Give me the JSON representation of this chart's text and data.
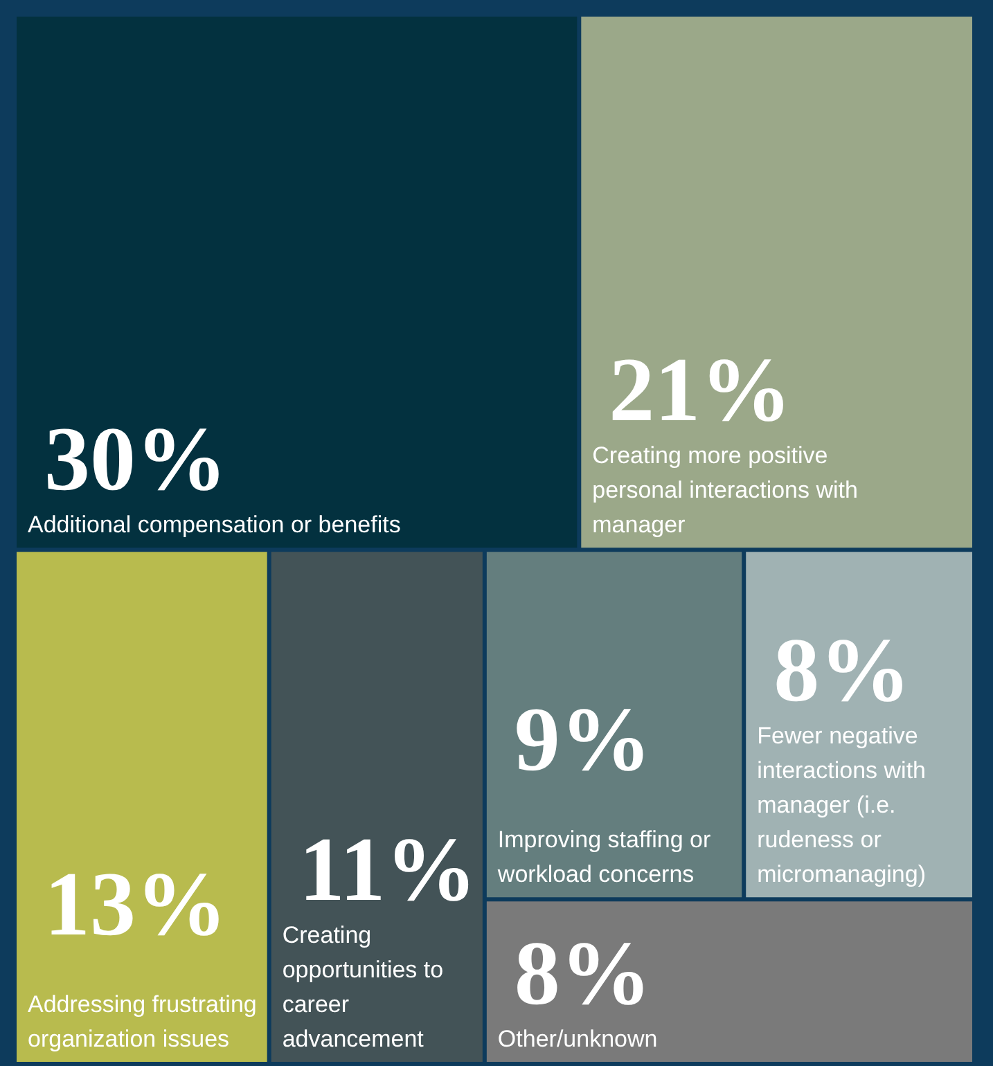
{
  "chart_data": {
    "type": "other",
    "categories": [
      "Additional compensation or benefits",
      "Creating more positive personal interactions with manager",
      "Addressing frustrating organization issues",
      "Creating opportunities to career advancement",
      "Improving staffing or workload concerns",
      "Fewer negative interactions with manager (i.e. rudeness or micromanaging)",
      "Other/unknown"
    ],
    "values": [
      30,
      21,
      13,
      11,
      9,
      8,
      8
    ],
    "value_labels": [
      "30%",
      "21%",
      "13%",
      "11%",
      "9%",
      "8%",
      "8%"
    ],
    "colors": [
      "#03313f",
      "#9ba889",
      "#b8bb4e",
      "#435357",
      "#647e7e",
      "#a0b2b3",
      "#7a7a7a"
    ]
  }
}
